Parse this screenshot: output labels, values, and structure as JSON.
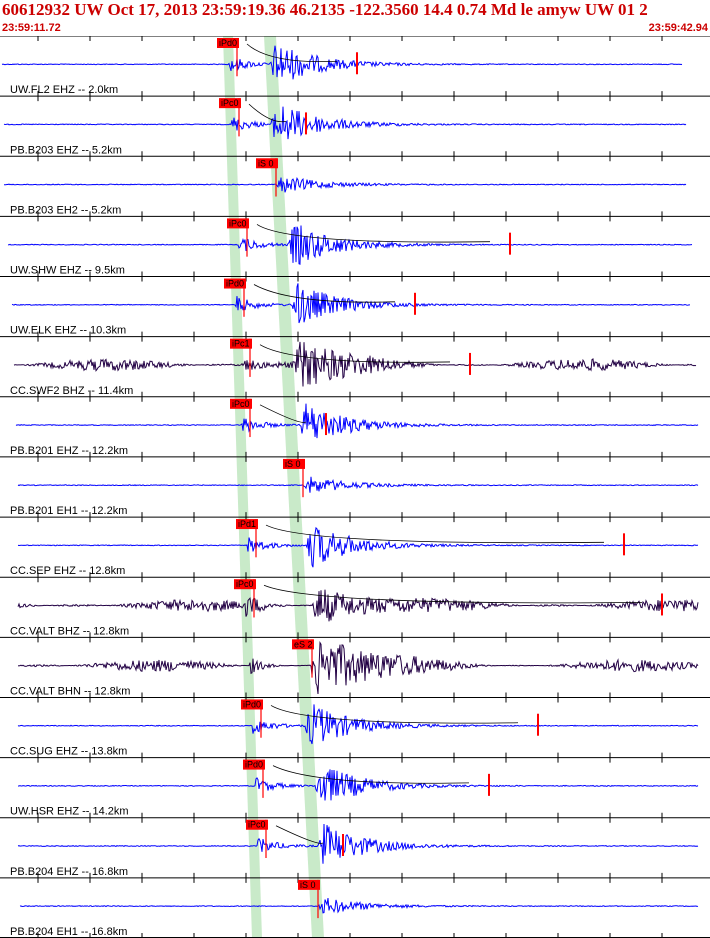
{
  "header": {
    "title": "60612932 UW Oct 17, 2013 23:59:19.36   46.2135 -122.3560 14.4 0.74 Md le amyw UW 01   2",
    "start_time": "23:59:11.72",
    "end_time": "23:59:42.94"
  },
  "colors": {
    "trace_blue": "#0000ff",
    "trace_dark": "#220044",
    "pick_red": "#ff0000",
    "window_green": "#bfe6bf"
  },
  "channels": [
    {
      "label": "UW.FL2 EHZ -- 2.0km",
      "pick": "iPd0",
      "kind": "z",
      "color": "blue"
    },
    {
      "label": "PB.B203 EHZ -- 5.2km",
      "pick": "iPc0",
      "kind": "z",
      "color": "blue"
    },
    {
      "label": "PB.B203 EH2 -- 5.2km",
      "pick": "iS 0",
      "kind": "h",
      "color": "blue"
    },
    {
      "label": "UW.SHW EHZ -- 9.5km",
      "pick": "iPc0",
      "kind": "z",
      "color": "blue"
    },
    {
      "label": "UW.ELK EHZ -- 10.3km",
      "pick": "iPd0",
      "kind": "z",
      "color": "blue"
    },
    {
      "label": "CC.SWF2 BHZ -- 11.4km",
      "pick": "iPc1",
      "kind": "z",
      "color": "dark"
    },
    {
      "label": "PB.B201 EHZ -- 12.2km",
      "pick": "iPc0",
      "kind": "z",
      "color": "blue"
    },
    {
      "label": "PB.B201 EH1 -- 12.2km",
      "pick": "iS 0",
      "kind": "h",
      "color": "blue"
    },
    {
      "label": "CC.SEP EHZ -- 12.8km",
      "pick": "iPd1",
      "kind": "z",
      "color": "blue"
    },
    {
      "label": "CC.VALT BHZ -- 12.8km",
      "pick": "iPc0",
      "kind": "z",
      "color": "dark"
    },
    {
      "label": "CC.VALT BHN -- 12.8km",
      "pick": "eS 2",
      "kind": "h",
      "color": "dark"
    },
    {
      "label": "CC.SUG EHZ -- 13.8km",
      "pick": "iPd0",
      "kind": "z",
      "color": "blue"
    },
    {
      "label": "UW.HSR EHZ -- 14.2km",
      "pick": "iPd0",
      "kind": "z",
      "color": "blue"
    },
    {
      "label": "PB.B204 EHZ -- 16.8km",
      "pick": "iPc0",
      "kind": "z",
      "color": "blue"
    },
    {
      "label": "PB.B204 EH1 -- 16.8km",
      "pick": "iS 0",
      "kind": "h",
      "color": "blue"
    }
  ]
}
